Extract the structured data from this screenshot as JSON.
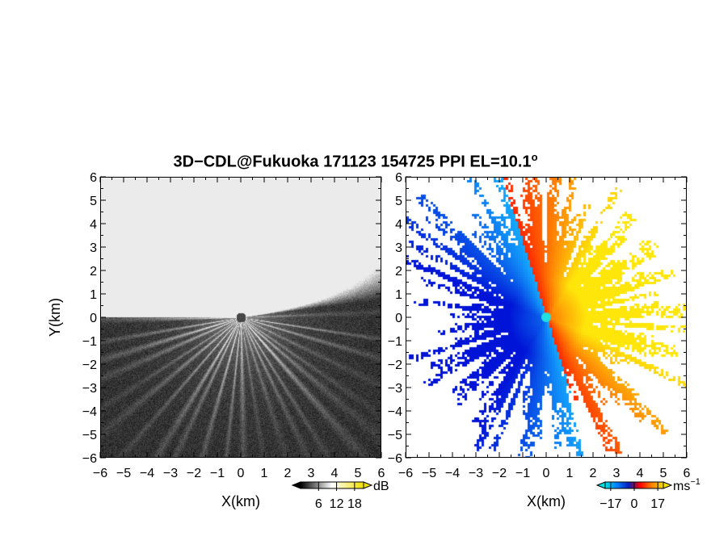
{
  "title": "3D−CDL@Fukuoka 171123 154725 PPI EL=10.1",
  "title_degree": "o",
  "chart_data": [
    {
      "type": "heatmap",
      "name": "reflectivity-ppi",
      "xlabel": "X(km)",
      "ylabel": "Y(km)",
      "xlim": [
        -6,
        6
      ],
      "ylim": [
        -6,
        6
      ],
      "x_ticks": [
        "−6",
        "−5",
        "−4",
        "−3",
        "−2",
        "−1",
        "0",
        "1",
        "2",
        "3",
        "4",
        "5",
        "6"
      ],
      "y_ticks": [
        "−6",
        "−5",
        "−4",
        "−3",
        "−2",
        "−1",
        "0",
        "1",
        "2",
        "3",
        "4",
        "5",
        "6"
      ],
      "colormap": "grayscale",
      "colorbar": {
        "unit": "dB",
        "ticks": [
          "6",
          "12",
          "18"
        ],
        "range": [
          0,
          21
        ],
        "colors": [
          "#000000",
          "#ffffff",
          "#f0e000"
        ]
      }
    },
    {
      "type": "heatmap",
      "name": "doppler-velocity-ppi",
      "xlabel": "X(km)",
      "xlim": [
        -6,
        6
      ],
      "ylim": [
        -6,
        6
      ],
      "x_ticks": [
        "−6",
        "−5",
        "−4",
        "−3",
        "−2",
        "−1",
        "0",
        "1",
        "2",
        "3",
        "4",
        "5",
        "6"
      ],
      "y_ticks": [
        "−6",
        "−5",
        "−4",
        "−3",
        "−2",
        "−1",
        "0",
        "1",
        "2",
        "3",
        "4",
        "5",
        "6"
      ],
      "colormap": "diverging-blue-red",
      "colorbar": {
        "unit": "ms",
        "unit_exponent": "−1",
        "ticks": [
          "−17",
          "0",
          "17"
        ],
        "range": [
          -21,
          21
        ],
        "colors": [
          "#00e0e0",
          "#0080ff",
          "#0020c0",
          "#ff0000",
          "#ff8000",
          "#f0e000"
        ]
      }
    }
  ]
}
